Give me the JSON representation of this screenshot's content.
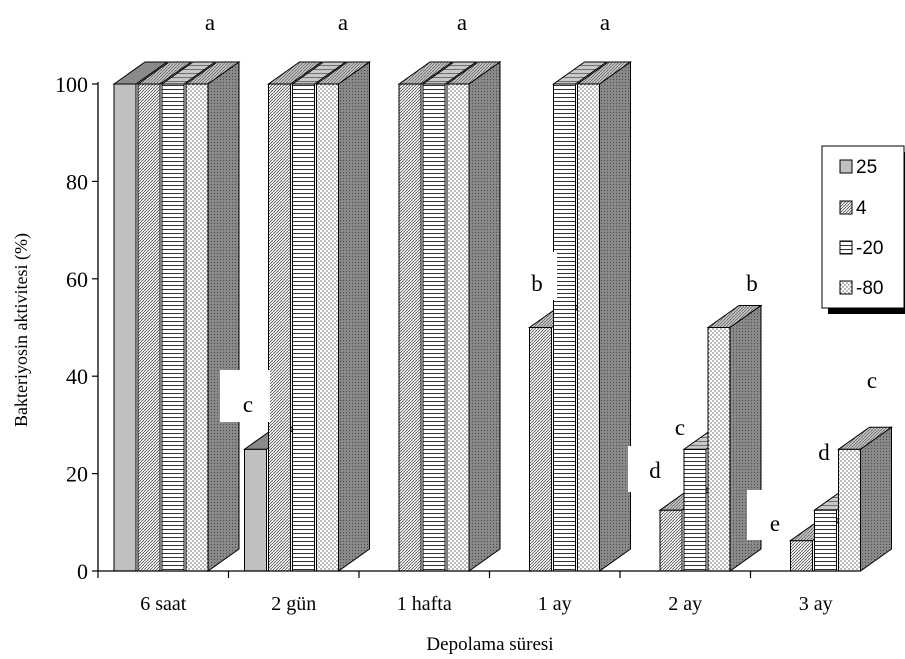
{
  "chart_data": {
    "type": "bar",
    "title": "",
    "xlabel": "Depolama süresi",
    "ylabel": "Bakteriyosin aktivitesi (%)",
    "ylim": [
      0,
      100
    ],
    "yticks": [
      0,
      20,
      40,
      60,
      80,
      100
    ],
    "categories": [
      "6 saat",
      "2 gün",
      "1 hafta",
      "1 ay",
      "2 ay",
      "3 ay"
    ],
    "series": [
      {
        "name": "25",
        "values": [
          100,
          25,
          0,
          0,
          0,
          0
        ]
      },
      {
        "name": "4",
        "values": [
          100,
          100,
          100,
          50,
          12.5,
          6.25
        ]
      },
      {
        "name": "-20",
        "values": [
          100,
          100,
          100,
          100,
          25,
          12.5
        ]
      },
      {
        "name": "-80",
        "values": [
          100,
          100,
          100,
          100,
          50,
          25
        ]
      }
    ],
    "annotations": [
      {
        "category": "6 saat",
        "text": "a"
      },
      {
        "category": "2 gün",
        "text": "a"
      },
      {
        "category": "1 hafta",
        "text": "a"
      },
      {
        "category": "1 ay",
        "text": "a"
      },
      {
        "category": "2 gün",
        "text": "c"
      },
      {
        "category": "1 ay",
        "text": "b"
      },
      {
        "category": "2 ay",
        "text": "b"
      },
      {
        "category": "2 ay",
        "text": "c"
      },
      {
        "category": "2 ay",
        "text": "d"
      },
      {
        "category": "3 ay",
        "text": "c"
      },
      {
        "category": "3 ay",
        "text": "d"
      },
      {
        "category": "3 ay",
        "text": "e"
      }
    ],
    "legend": {
      "position": "right",
      "entries": [
        "25",
        "4",
        "-20",
        "-80"
      ]
    },
    "grid": false,
    "colors": {
      "front_25": "#c0c0c0",
      "top_25": "#8a8a8a",
      "side": "#8c8c8c",
      "top": "#b4b4b4",
      "pattern_ink": "#555555",
      "edge": "#000000"
    }
  }
}
